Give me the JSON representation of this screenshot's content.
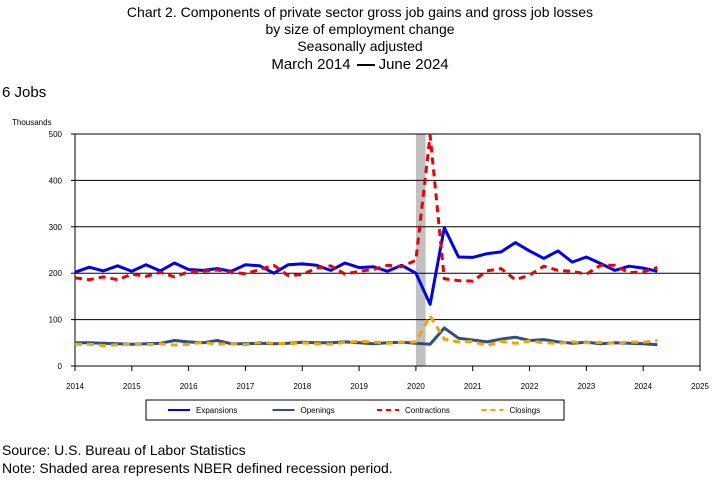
{
  "title": {
    "line1": "Chart 2. Components of private sector gross job gains and gross job losses",
    "line2": "by size of employment change",
    "line3": "Seasonally adjusted",
    "date_start": "March 2014",
    "date_end": "June 2024"
  },
  "subtitle": "6 Jobs",
  "footer": {
    "source": "Source: U.S. Bureau of Labor Statistics",
    "note": "Note: Shaded area represents NBER defined recession period."
  },
  "chart_data": {
    "type": "line",
    "ylabel": "Thousands",
    "ylim": [
      0,
      500
    ],
    "xlim": [
      2014,
      2025
    ],
    "yticks": [
      0,
      100,
      200,
      300,
      400,
      500
    ],
    "xticks": [
      2014,
      2015,
      2016,
      2017,
      2018,
      2019,
      2020,
      2021,
      2022,
      2023,
      2024,
      2025
    ],
    "grid": "horizontal",
    "legend_position": "bottom",
    "recession": {
      "start": 2020.0,
      "end": 2020.17,
      "color": "#c0c0c0"
    },
    "x": [
      2014.0,
      2014.25,
      2014.5,
      2014.75,
      2015.0,
      2015.25,
      2015.5,
      2015.75,
      2016.0,
      2016.25,
      2016.5,
      2016.75,
      2017.0,
      2017.25,
      2017.5,
      2017.75,
      2018.0,
      2018.25,
      2018.5,
      2018.75,
      2019.0,
      2019.25,
      2019.5,
      2019.75,
      2020.0,
      2020.25,
      2020.5,
      2020.75,
      2021.0,
      2021.25,
      2021.5,
      2021.75,
      2022.0,
      2022.25,
      2022.5,
      2022.75,
      2023.0,
      2023.25,
      2023.5,
      2023.75,
      2024.0,
      2024.25
    ],
    "series": [
      {
        "name": "Expansions",
        "color": "#0000ee",
        "dash": "solid",
        "width": 3,
        "values": [
          202,
          213,
          205,
          216,
          204,
          218,
          205,
          222,
          208,
          206,
          210,
          204,
          218,
          216,
          200,
          218,
          220,
          217,
          206,
          222,
          212,
          214,
          204,
          217,
          200,
          133,
          298,
          235,
          234,
          242,
          246,
          266,
          248,
          232,
          248,
          224,
          235,
          221,
          206,
          215,
          211,
          204
        ]
      },
      {
        "name": "Openings",
        "color": "#2f4f7f",
        "dash": "solid",
        "width": 3,
        "values": [
          50,
          50,
          49,
          48,
          47,
          48,
          49,
          55,
          52,
          50,
          55,
          48,
          48,
          49,
          48,
          49,
          51,
          50,
          50,
          52,
          50,
          48,
          50,
          51,
          49,
          47,
          82,
          60,
          56,
          52,
          58,
          62,
          55,
          57,
          52,
          49,
          51,
          48,
          50,
          49,
          48,
          46
        ]
      },
      {
        "name": "Contractions",
        "color": "#ee0000",
        "dash": "dashed",
        "width": 3,
        "values": [
          190,
          186,
          192,
          186,
          198,
          193,
          202,
          192,
          203,
          204,
          207,
          202,
          199,
          208,
          217,
          195,
          197,
          211,
          216,
          198,
          204,
          208,
          217,
          214,
          228,
          497,
          188,
          184,
          183,
          205,
          210,
          186,
          196,
          215,
          206,
          204,
          198,
          217,
          217,
          201,
          203,
          212
        ]
      },
      {
        "name": "Closings",
        "color": "#f5a300",
        "dash": "dashed",
        "width": 3,
        "values": [
          47,
          47,
          44,
          46,
          47,
          46,
          48,
          45,
          47,
          51,
          47,
          48,
          46,
          51,
          49,
          48,
          50,
          48,
          47,
          51,
          53,
          52,
          49,
          51,
          52,
          108,
          58,
          52,
          53,
          44,
          53,
          49,
          54,
          50,
          49,
          52,
          50,
          51,
          49,
          52,
          51,
          55
        ]
      }
    ]
  }
}
